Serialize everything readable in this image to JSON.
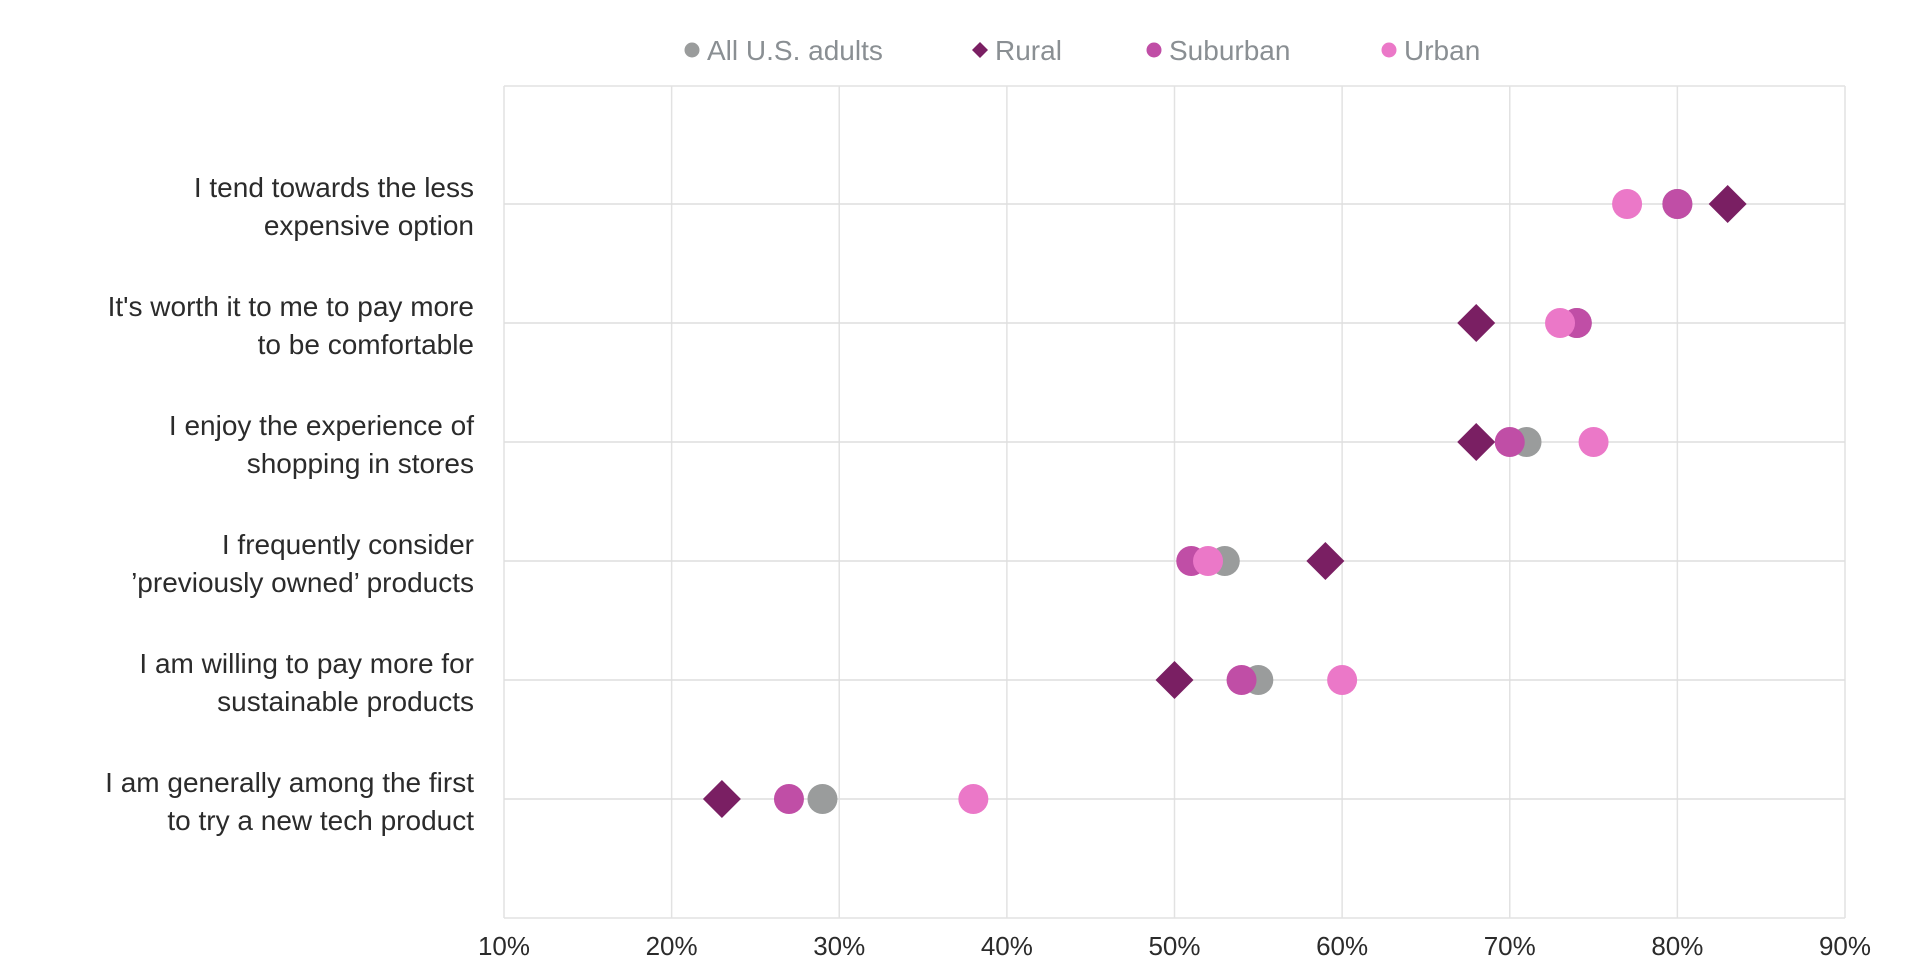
{
  "chart_data": {
    "type": "scatter",
    "title": "",
    "xlabel": "",
    "ylabel": "",
    "xlim": [
      10,
      90
    ],
    "x_ticks": [
      "10%",
      "20%",
      "30%",
      "40%",
      "50%",
      "60%",
      "70%",
      "80%",
      "90%"
    ],
    "x_tick_values": [
      10,
      20,
      30,
      40,
      50,
      60,
      70,
      80,
      90
    ],
    "grid": true,
    "legend_position": "top",
    "categories": [
      {
        "line1": "I tend towards the less",
        "line2": "expensive option"
      },
      {
        "line1": "It's worth it to me to pay more",
        "line2": "to be comfortable"
      },
      {
        "line1": "I enjoy the experience of",
        "line2": "shopping in stores"
      },
      {
        "line1": "I frequently consider",
        "line2": "’previously owned’ products"
      },
      {
        "line1": "I am willing to pay more for",
        "line2": "sustainable products"
      },
      {
        "line1": "I am generally among the first",
        "line2": "to try a new tech product"
      }
    ],
    "series": [
      {
        "name": "All U.S. adults",
        "marker": "circle",
        "color": "#9a9c9c",
        "values": [
          80,
          74,
          71,
          53,
          55,
          29
        ]
      },
      {
        "name": "Rural",
        "marker": "diamond",
        "color": "#7a1f63",
        "values": [
          83,
          68,
          68,
          59,
          50,
          23
        ]
      },
      {
        "name": "Suburban",
        "marker": "circle",
        "color": "#c04ea6",
        "values": [
          80,
          74,
          70,
          51,
          54,
          27
        ]
      },
      {
        "name": "Urban",
        "marker": "circle",
        "color": "#eb78c8",
        "values": [
          77,
          73,
          75,
          52,
          60,
          38
        ]
      }
    ]
  }
}
